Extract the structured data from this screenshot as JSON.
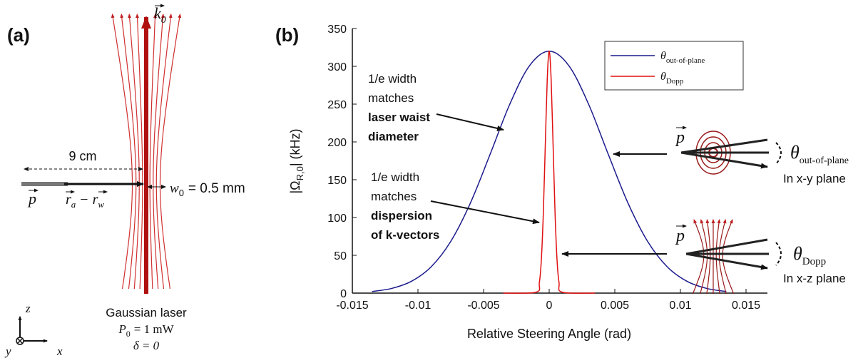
{
  "panel_a": {
    "label": "(a)",
    "wave_vector": {
      "symbol": "k",
      "subscript": "0"
    },
    "distance": "9 cm",
    "momentum": "p",
    "separation": {
      "first": "r",
      "first_sub": "a",
      "operator": "−",
      "second": "r",
      "second_sub": "w"
    },
    "waist": {
      "symbol": "w",
      "subscript": "0",
      "value": "= 0.5 mm"
    },
    "caption": {
      "title": "Gaussian laser",
      "power": {
        "symbol": "P",
        "subscript": "0",
        "value": "= 1 mW"
      },
      "detuning": "δ = 0"
    },
    "axes": {
      "z": "z",
      "y": "y",
      "x": "x"
    }
  },
  "chart_data": {
    "type": "line",
    "panel_label": "(b)",
    "xlabel": "Relative Steering Angle (rad)",
    "ylabel": {
      "prefix": "|Ω",
      "subscript": "R,0",
      "suffix": "| (kHz)"
    },
    "xlim": [
      -0.015,
      0.015
    ],
    "xticks": [
      -0.015,
      -0.01,
      -0.005,
      0,
      0.005,
      0.01,
      0.015
    ],
    "ylim": [
      0,
      350
    ],
    "yticks": [
      0,
      50,
      100,
      150,
      200,
      250,
      300,
      350
    ],
    "legend": "top-right",
    "series": [
      {
        "name": "θ",
        "subscript": "out-of-plane",
        "color": "#1a1a8c",
        "x": [
          -0.0135,
          -0.012,
          -0.0105,
          -0.009,
          -0.0075,
          -0.006,
          -0.0045,
          -0.003,
          -0.0015,
          0,
          0.0015,
          0.003,
          0.0045,
          0.006,
          0.0075,
          0.009,
          0.0105,
          0.012,
          0.0135
        ],
        "values": [
          2.1,
          6.2,
          15.6,
          34.7,
          68.4,
          119.3,
          183.7,
          250,
          300.8,
          320,
          300.8,
          250,
          183.7,
          119.3,
          68.4,
          34.7,
          15.6,
          6.2,
          2.1
        ]
      },
      {
        "name": "θ",
        "subscript": "Dopp",
        "color": "#e01010",
        "x": [
          -0.0035,
          -0.001,
          -0.00075,
          -0.0006,
          -0.00045,
          -0.0003,
          -0.00015,
          0,
          0.00015,
          0.0003,
          0.00045,
          0.0006,
          0.00075,
          0.001,
          0.0035
        ],
        "values": [
          0,
          1.2,
          14,
          43.3,
          104,
          194,
          282,
          320,
          282,
          194,
          104,
          43.3,
          14,
          1.2,
          0
        ]
      }
    ],
    "annotations": [
      {
        "lines": [
          "1/e width",
          "matches"
        ],
        "bold": [
          "laser waist",
          "diameter"
        ]
      },
      {
        "lines": [
          "1/e width",
          "matches"
        ],
        "bold": [
          "dispersion",
          "of k-vectors"
        ]
      }
    ],
    "insets": [
      {
        "momentum": "p",
        "angle": "θ",
        "angle_sub": "out-of-plane",
        "plane": "In x-y plane"
      },
      {
        "momentum": "p",
        "angle": "θ",
        "angle_sub": "Dopp",
        "plane": "In x-z plane"
      }
    ]
  }
}
